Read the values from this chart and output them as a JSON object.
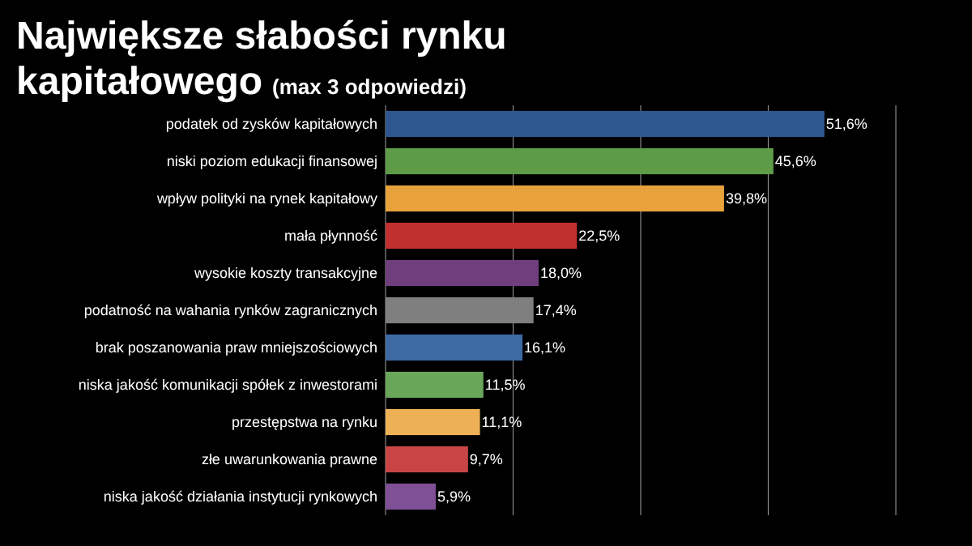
{
  "chart_data": {
    "type": "bar",
    "orientation": "horizontal",
    "title": "Największe słabości rynku kapitałowego",
    "subtitle": "(max 3 odpowiedzi)",
    "categories": [
      "podatek od zysków kapitałowych",
      "niski poziom edukacji finansowej",
      "wpływ polityki na rynek kapitałowy",
      "mała płynność",
      "wysokie koszty transakcyjne",
      "podatność na wahania rynków zagranicznych",
      "brak poszanowania praw mniejszościowych",
      "niska jakość komunikacji spółek z inwestorami",
      "przestępstwa na rynku",
      "złe uwarunkowania prawne",
      "niska jakość działania instytucji rynkowych"
    ],
    "values": [
      51.6,
      45.6,
      39.8,
      22.5,
      18.0,
      17.4,
      16.1,
      11.5,
      11.1,
      9.7,
      5.9
    ],
    "value_labels": [
      "51,6%",
      "45,6%",
      "39,8%",
      "22,5%",
      "18,0%",
      "17,4%",
      "16,1%",
      "11,5%",
      "11,1%",
      "9,7%",
      "5,9%"
    ],
    "colors": [
      "#2e5790",
      "#5e9b47",
      "#e8a23c",
      "#c0302f",
      "#6f3e7d",
      "#7f7f7f",
      "#3e6aa4",
      "#6aa65a",
      "#eeb055",
      "#c94545",
      "#7f5096"
    ],
    "xlim": [
      0,
      60
    ],
    "xticks": [
      {
        "value": 0,
        "label": null
      },
      {
        "value": 15,
        "label": null
      },
      {
        "value": 30,
        "label": null
      },
      {
        "value": 45,
        "label": null
      },
      {
        "value": 60,
        "label": null
      }
    ],
    "grid": "x"
  }
}
